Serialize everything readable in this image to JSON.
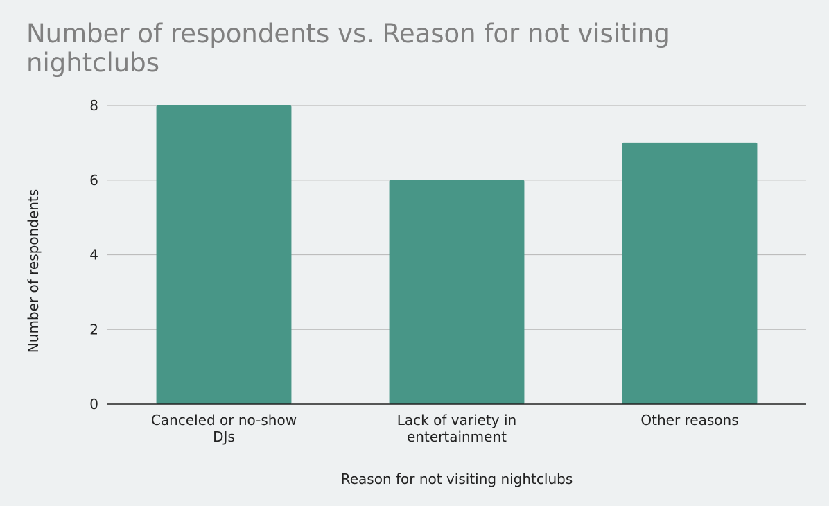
{
  "chart_data": {
    "type": "bar",
    "title": "Number of respondents vs. Reason for not visiting nightclubs",
    "xlabel": "Reason for not visiting nightclubs",
    "ylabel": "Number of respondents",
    "categories": [
      [
        "Canceled or no-show",
        "DJs"
      ],
      [
        "Lack of variety in",
        "entertainment"
      ],
      [
        "Other reasons"
      ]
    ],
    "values": [
      8,
      6,
      7
    ],
    "ylim": [
      0,
      8
    ],
    "yticks": [
      0,
      2,
      4,
      6,
      8
    ],
    "grid": true,
    "legend": "none",
    "bar_color": "#489687",
    "grid_color": "#bdbdbd",
    "axis_color": "#222222"
  }
}
